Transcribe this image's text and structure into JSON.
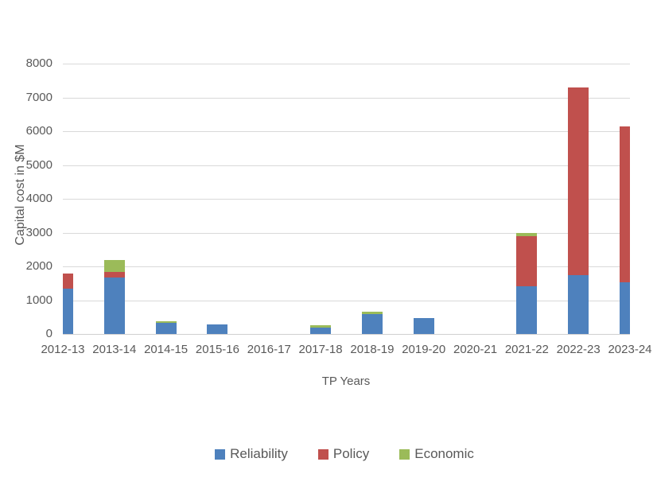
{
  "chart_data": {
    "type": "bar",
    "stacked": true,
    "title": "",
    "xlabel": "TP Years",
    "ylabel": "Capital cost in $M",
    "categories": [
      "2012-13",
      "2013-14",
      "2014-15",
      "2015-16",
      "2016-17",
      "2017-18",
      "2018-19",
      "2019-20",
      "2020-21",
      "2021-22",
      "2022-23",
      "2023-24"
    ],
    "series": [
      {
        "name": "Reliability",
        "color": "#4E81BD",
        "values": [
          1350,
          1680,
          340,
          280,
          0,
          185,
          585,
          480,
          0,
          1410,
          1750,
          1520
        ]
      },
      {
        "name": "Policy",
        "color": "#C0504D",
        "values": [
          430,
          150,
          0,
          0,
          0,
          0,
          0,
          0,
          0,
          1480,
          5540,
          4620
        ]
      },
      {
        "name": "Economic",
        "color": "#9BBB59",
        "values": [
          0,
          350,
          30,
          0,
          0,
          70,
          70,
          0,
          0,
          90,
          0,
          0
        ]
      }
    ],
    "ylim": [
      0,
      8000
    ],
    "ytick_step": 1000,
    "y_tick_labels": [
      "0",
      "1000",
      "2000",
      "3000",
      "4000",
      "5000",
      "6000",
      "7000",
      "8000"
    ],
    "grid": true,
    "gridline_color": "#d9d9d9",
    "axis_line_color": "#d0d0d0",
    "text_color": "#595959",
    "legend_position": "bottom"
  }
}
